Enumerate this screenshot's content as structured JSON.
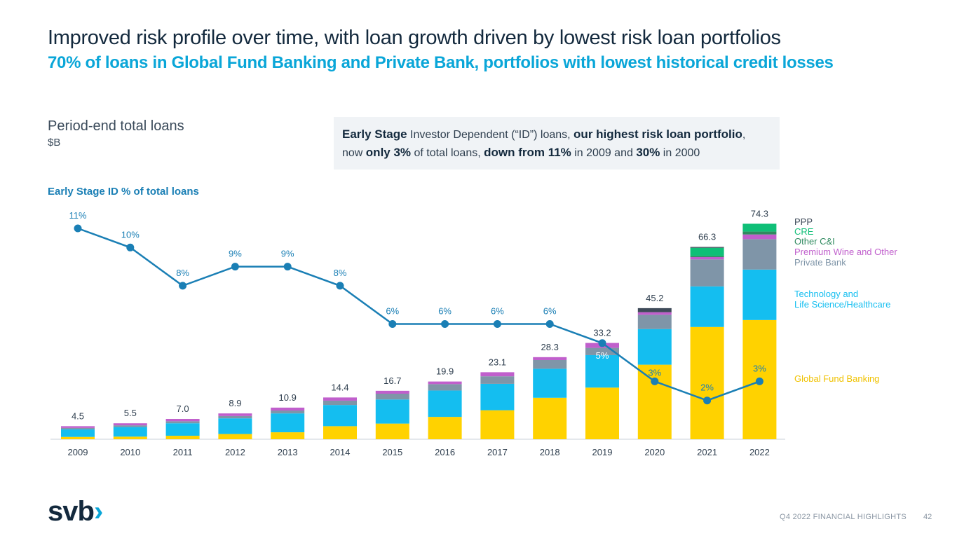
{
  "header": {
    "title": "Improved risk profile over time, with loan growth driven by lowest risk loan portfolios",
    "subtitle": "70% of loans in Global Fund Banking and Private Bank, portfolios with lowest historical credit losses"
  },
  "metric": {
    "title": "Period-end total loans",
    "unit": "$B"
  },
  "callout": {
    "p1": "Early Stage",
    "p2": " Investor Dependent (“ID”) loans, ",
    "p3": "our highest risk loan portfolio",
    "p4": ",",
    "p5": "now ",
    "p6": "only 3%",
    "p7": " of total loans, ",
    "p8": "down from 11%",
    "p9": " in 2009 and ",
    "p10": "30%",
    "p11": " in 2000"
  },
  "line_label": "Early Stage ID % of total loans",
  "footer": {
    "text": "Q4 2022 FINANCIAL HIGHLIGHTS",
    "page": "42"
  },
  "logo": {
    "text": "svb",
    "chevron": "›"
  },
  "colors": {
    "global_fund_banking": "#ffd200",
    "tech_life_science": "#14bef0",
    "private_bank": "#7f95a8",
    "premium_wine": "#c05fcc",
    "other_ci": "#2f8a5f",
    "cre": "#0fbf77",
    "ppp": "#3e4a59",
    "line": "#1a7fb5"
  },
  "chart_data": {
    "type": "bar",
    "stacked": true,
    "categories": [
      "2009",
      "2010",
      "2011",
      "2012",
      "2013",
      "2014",
      "2015",
      "2016",
      "2017",
      "2018",
      "2019",
      "2020",
      "2021",
      "2022"
    ],
    "totals": [
      4.5,
      5.5,
      7.0,
      8.9,
      10.9,
      14.4,
      16.7,
      19.9,
      23.1,
      28.3,
      33.2,
      45.2,
      66.3,
      74.3
    ],
    "total_labels": [
      "4.5",
      "5.5",
      "7.0",
      "8.9",
      "10.9",
      "14.4",
      "16.7",
      "19.9",
      "23.1",
      "28.3",
      "33.2",
      "45.2",
      "66.3",
      "74.3"
    ],
    "series": [
      {
        "name": "Global Fund Banking",
        "color": "#ffd200",
        "values": [
          0.8,
          0.9,
          1.2,
          1.8,
          2.4,
          4.5,
          5.4,
          7.7,
          10.0,
          14.3,
          17.8,
          25.7,
          38.7,
          41.1
        ]
      },
      {
        "name": "Technology and Life Science/Healthcare",
        "color": "#14bef0",
        "values": [
          2.6,
          3.3,
          4.3,
          5.4,
          6.5,
          7.3,
          8.3,
          9.1,
          9.1,
          10.0,
          11.2,
          12.3,
          14.0,
          17.4
        ]
      },
      {
        "name": "Private Bank",
        "color": "#7f95a8",
        "values": [
          0.5,
          0.6,
          0.7,
          0.8,
          1.0,
          1.5,
          2.0,
          2.2,
          2.6,
          3.0,
          2.5,
          4.9,
          9.3,
          10.5
        ]
      },
      {
        "name": "Premium Wine and Other",
        "color": "#c05fcc",
        "values": [
          0.6,
          0.7,
          0.8,
          0.9,
          1.0,
          1.1,
          1.0,
          0.9,
          1.4,
          1.0,
          1.7,
          0.9,
          0.8,
          1.6
        ]
      },
      {
        "name": "Other C&I",
        "color": "#2f8a5f",
        "values": [
          0,
          0,
          0,
          0,
          0,
          0,
          0,
          0,
          0,
          0,
          0,
          0,
          0.4,
          1.0
        ]
      },
      {
        "name": "CRE",
        "color": "#0fbf77",
        "values": [
          0,
          0,
          0,
          0,
          0,
          0,
          0,
          0,
          0,
          0,
          0,
          0,
          2.8,
          2.7
        ]
      },
      {
        "name": "PPP",
        "color": "#3e4a59",
        "values": [
          0,
          0,
          0,
          0,
          0,
          0,
          0,
          0,
          0,
          0,
          0,
          1.4,
          0.3,
          0
        ]
      }
    ],
    "line_series": {
      "name": "Early Stage ID % of total loans",
      "values": [
        11,
        10,
        8,
        9,
        9,
        8,
        6,
        6,
        6,
        6,
        5,
        3,
        2,
        3
      ],
      "labels": [
        "11%",
        "10%",
        "8%",
        "9%",
        "9%",
        "8%",
        "6%",
        "6%",
        "6%",
        "6%",
        "5%",
        "3%",
        "2%",
        "3%"
      ]
    },
    "legend": [
      {
        "label": "PPP",
        "color": "#3e4a59"
      },
      {
        "label": "CRE",
        "color": "#0fbf77"
      },
      {
        "label": "Other C&I",
        "color": "#2f8a5f"
      },
      {
        "label": "Premium Wine and Other",
        "color": "#c05fcc"
      },
      {
        "label": "Private Bank",
        "color": "#7f95a8"
      },
      {
        "label": "Technology and",
        "color": "#14bef0"
      },
      {
        "label": "Life Science/Healthcare",
        "color": "#14bef0"
      },
      {
        "label": "Global Fund Banking",
        "color": "#f0c200"
      }
    ],
    "legend_position": "right",
    "grid": false
  }
}
